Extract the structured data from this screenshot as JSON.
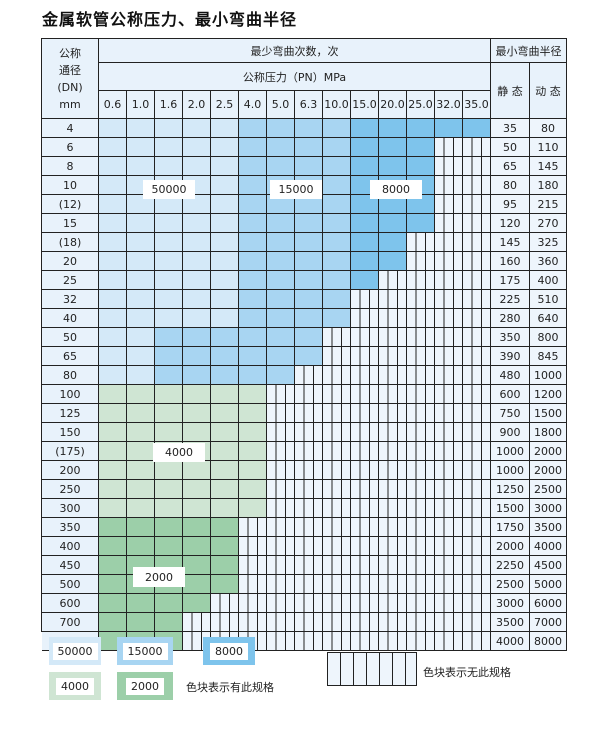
{
  "title": "金属软管公称压力、最小弯曲半径",
  "header": {
    "dn_label_lines": [
      "公称",
      "通径",
      "(DN)",
      "mm"
    ],
    "cycles_label": "最少弯曲次数，次",
    "pressure_label": "公称压力（PN）MPa",
    "radius_label": "最小弯曲半径",
    "static_label": "静 态",
    "dynamic_label": "动 态"
  },
  "pressures": [
    "0.6",
    "1.0",
    "1.6",
    "2.0",
    "2.5",
    "4.0",
    "5.0",
    "6.3",
    "10.0",
    "15.0",
    "20.0",
    "25.0",
    "32.0",
    "35.0"
  ],
  "colors": {
    "c50000": "#d4e9f8",
    "c15000": "#a8d5f2",
    "c8000": "#7ec4ec",
    "c4000": "#cfe5d3",
    "c2000": "#9ccfa9",
    "header": "#e8f2fb",
    "unavailable": "#eef5fc"
  },
  "rows": [
    {
      "dn": "4",
      "static": "35",
      "dynamic": "80",
      "available": 14,
      "zone": "blue"
    },
    {
      "dn": "6",
      "static": "50",
      "dynamic": "110",
      "available": 12,
      "zone": "blue"
    },
    {
      "dn": "8",
      "static": "65",
      "dynamic": "145",
      "available": 12,
      "zone": "blue"
    },
    {
      "dn": "10",
      "static": "80",
      "dynamic": "180",
      "available": 12,
      "zone": "blue"
    },
    {
      "dn": "(12)",
      "static": "95",
      "dynamic": "215",
      "available": 12,
      "zone": "blue"
    },
    {
      "dn": "15",
      "static": "120",
      "dynamic": "270",
      "available": 12,
      "zone": "blue"
    },
    {
      "dn": "(18)",
      "static": "145",
      "dynamic": "325",
      "available": 11,
      "zone": "blue"
    },
    {
      "dn": "20",
      "static": "160",
      "dynamic": "360",
      "available": 11,
      "zone": "blue"
    },
    {
      "dn": "25",
      "static": "175",
      "dynamic": "400",
      "available": 10,
      "zone": "blue"
    },
    {
      "dn": "32",
      "static": "225",
      "dynamic": "510",
      "available": 9,
      "zone": "blue"
    },
    {
      "dn": "40",
      "static": "280",
      "dynamic": "640",
      "available": 9,
      "zone": "blue"
    },
    {
      "dn": "50",
      "static": "350",
      "dynamic": "800",
      "available": 8,
      "zone": "blue"
    },
    {
      "dn": "65",
      "static": "390",
      "dynamic": "845",
      "available": 8,
      "zone": "blue"
    },
    {
      "dn": "80",
      "static": "480",
      "dynamic": "1000",
      "available": 7,
      "zone": "blue"
    },
    {
      "dn": "100",
      "static": "600",
      "dynamic": "1200",
      "available": 6,
      "zone": "c4000"
    },
    {
      "dn": "125",
      "static": "750",
      "dynamic": "1500",
      "available": 6,
      "zone": "c4000"
    },
    {
      "dn": "150",
      "static": "900",
      "dynamic": "1800",
      "available": 6,
      "zone": "c4000"
    },
    {
      "dn": "(175)",
      "static": "1000",
      "dynamic": "2000",
      "available": 6,
      "zone": "c4000"
    },
    {
      "dn": "200",
      "static": "1000",
      "dynamic": "2000",
      "available": 6,
      "zone": "c4000"
    },
    {
      "dn": "250",
      "static": "1250",
      "dynamic": "2500",
      "available": 6,
      "zone": "c4000"
    },
    {
      "dn": "300",
      "static": "1500",
      "dynamic": "3000",
      "available": 6,
      "zone": "c4000"
    },
    {
      "dn": "350",
      "static": "1750",
      "dynamic": "3500",
      "available": 5,
      "zone": "c2000"
    },
    {
      "dn": "400",
      "static": "2000",
      "dynamic": "4000",
      "available": 5,
      "zone": "c2000"
    },
    {
      "dn": "450",
      "static": "2250",
      "dynamic": "4500",
      "available": 5,
      "zone": "c2000"
    },
    {
      "dn": "500",
      "static": "2500",
      "dynamic": "5000",
      "available": 5,
      "zone": "c2000"
    },
    {
      "dn": "600",
      "static": "3000",
      "dynamic": "6000",
      "available": 4,
      "zone": "c2000"
    },
    {
      "dn": "700",
      "static": "3500",
      "dynamic": "7000",
      "available": 3,
      "zone": "c2000"
    },
    {
      "dn": "800",
      "static": "4000",
      "dynamic": "8000",
      "available": 3,
      "zone": "c2000"
    }
  ],
  "region_labels": {
    "l50000": "50000",
    "l15000": "15000",
    "l8000": "8000",
    "l4000": "4000",
    "l2000": "2000"
  },
  "legend": {
    "b50000": "50000",
    "b15000": "15000",
    "b8000": "8000",
    "b4000": "4000",
    "b2000": "2000",
    "available_text": "色块表示有此规格",
    "unavailable_text": "色块表示无此规格"
  }
}
